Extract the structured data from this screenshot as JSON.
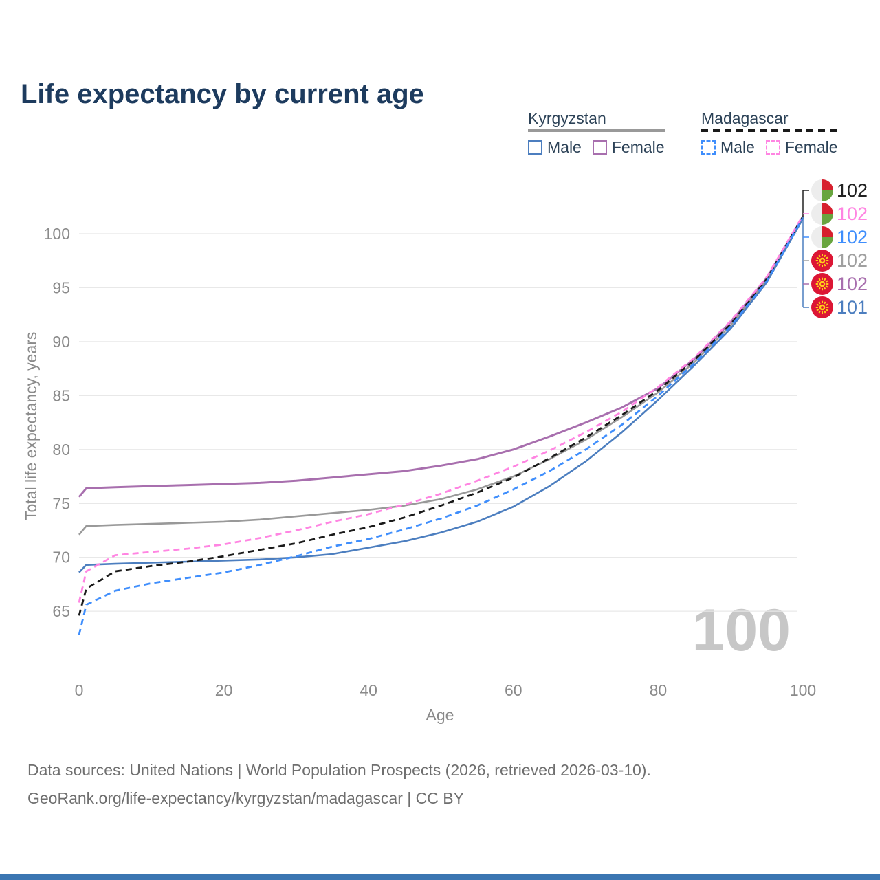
{
  "title": "Life expectancy by current age",
  "watermark": "100",
  "legend": {
    "groups": [
      {
        "title": "Kyrgyzstan",
        "line_style": "solid",
        "underline_color": "#999999",
        "items": [
          {
            "label": "Male",
            "color": "#4c7ebf",
            "dashed": false
          },
          {
            "label": "Female",
            "color": "#a86fae",
            "dashed": false
          }
        ]
      },
      {
        "title": "Madagascar",
        "line_style": "dashed",
        "underline_color": "#1a1a1a",
        "items": [
          {
            "label": "Male",
            "color": "#3f8efc",
            "dashed": true
          },
          {
            "label": "Female",
            "color": "#ff85e2",
            "dashed": true
          }
        ]
      }
    ]
  },
  "axes": {
    "x": {
      "label": "Age",
      "ticks": [
        0,
        20,
        40,
        60,
        80,
        100
      ]
    },
    "y": {
      "label": "Total life expectancy, years",
      "ticks": [
        65,
        70,
        75,
        80,
        85,
        90,
        95,
        100
      ]
    }
  },
  "chart_data": {
    "type": "line",
    "title": "Life expectancy by current age",
    "xlabel": "Age",
    "ylabel": "Total life expectancy, years",
    "xlim": [
      0,
      100
    ],
    "ylim": [
      62,
      102
    ],
    "grid": "horizontal",
    "legend_position": "top-right",
    "x": [
      0,
      1,
      5,
      10,
      15,
      20,
      25,
      30,
      35,
      40,
      45,
      50,
      55,
      60,
      65,
      70,
      75,
      80,
      85,
      90,
      95,
      100
    ],
    "series": [
      {
        "id": "kyrgyzstan-female",
        "name": "Kyrgyzstan Female",
        "country": "Kyrgyzstan",
        "sex": "Female",
        "color": "#a86fae",
        "dashed": false,
        "width": 3,
        "values": [
          75.6,
          76.4,
          76.5,
          76.6,
          76.7,
          76.8,
          76.9,
          77.1,
          77.4,
          77.7,
          78.0,
          78.5,
          79.1,
          80.0,
          81.2,
          82.5,
          83.9,
          85.7,
          88.4,
          91.8,
          95.9,
          101.6
        ]
      },
      {
        "id": "kyrgyzstan-total",
        "name": "Kyrgyzstan Both sexes",
        "country": "Kyrgyzstan",
        "sex": "Both",
        "color": "#999999",
        "dashed": false,
        "width": 2.6,
        "values": [
          72.1,
          72.9,
          73.0,
          73.1,
          73.2,
          73.3,
          73.5,
          73.8,
          74.1,
          74.4,
          74.8,
          75.4,
          76.3,
          77.5,
          79.1,
          80.9,
          83.0,
          85.3,
          88.1,
          91.5,
          95.7,
          101.5
        ]
      },
      {
        "id": "kyrgyzstan-male",
        "name": "Kyrgyzstan Male",
        "country": "Kyrgyzstan",
        "sex": "Male",
        "color": "#4c7ebf",
        "dashed": false,
        "width": 2.6,
        "values": [
          68.6,
          69.3,
          69.4,
          69.5,
          69.6,
          69.7,
          69.8,
          70.0,
          70.3,
          70.9,
          71.5,
          72.3,
          73.3,
          74.7,
          76.6,
          78.9,
          81.6,
          84.6,
          87.8,
          91.2,
          95.5,
          101.4
        ]
      },
      {
        "id": "madagascar-total",
        "name": "Madagascar Both sexes",
        "country": "Madagascar",
        "sex": "Both",
        "color": "#1a1a1a",
        "dashed": true,
        "width": 2.8,
        "values": [
          64.6,
          67.1,
          68.7,
          69.2,
          69.6,
          70.1,
          70.7,
          71.3,
          72.1,
          72.8,
          73.7,
          74.8,
          76.0,
          77.4,
          79.2,
          81.1,
          83.2,
          85.5,
          88.3,
          91.6,
          95.8,
          101.6
        ]
      },
      {
        "id": "madagascar-female",
        "name": "Madagascar Female",
        "country": "Madagascar",
        "sex": "Female",
        "color": "#ff85e2",
        "dashed": true,
        "width": 2.8,
        "values": [
          65.8,
          68.7,
          70.2,
          70.5,
          70.8,
          71.2,
          71.8,
          72.5,
          73.3,
          74.0,
          74.9,
          75.9,
          77.1,
          78.4,
          79.9,
          81.6,
          83.5,
          85.8,
          88.5,
          91.9,
          96.0,
          101.7
        ]
      },
      {
        "id": "madagascar-male",
        "name": "Madagascar Male",
        "country": "Madagascar",
        "sex": "Male",
        "color": "#3f8efc",
        "dashed": true,
        "width": 2.8,
        "values": [
          62.8,
          65.6,
          66.9,
          67.6,
          68.1,
          68.6,
          69.3,
          70.1,
          71.0,
          71.7,
          72.6,
          73.6,
          74.8,
          76.3,
          78.0,
          80.0,
          82.3,
          85.0,
          88.0,
          91.4,
          95.6,
          101.5
        ]
      }
    ],
    "end_labels": [
      {
        "value": 102,
        "color": "#222222",
        "flag": "madagascar",
        "series": "madagascar-total"
      },
      {
        "value": 102,
        "color": "#ff85e2",
        "flag": "madagascar",
        "series": "madagascar-female"
      },
      {
        "value": 102,
        "color": "#3f8efc",
        "flag": "madagascar",
        "series": "madagascar-male"
      },
      {
        "value": 102,
        "color": "#a0a0a0",
        "flag": "kyrgyzstan",
        "series": "kyrgyzstan-total"
      },
      {
        "value": 102,
        "color": "#a86fae",
        "flag": "kyrgyzstan",
        "series": "kyrgyzstan-female"
      },
      {
        "value": 101,
        "color": "#4c7ebf",
        "flag": "kyrgyzstan",
        "series": "kyrgyzstan-male"
      }
    ]
  },
  "footer": {
    "line1": "Data sources: United Nations | World Population Prospects (2026, retrieved 2026-03-10).",
    "line2": "GeoRank.org/life-expectancy/kyrgyzstan/madagascar | CC BY"
  }
}
